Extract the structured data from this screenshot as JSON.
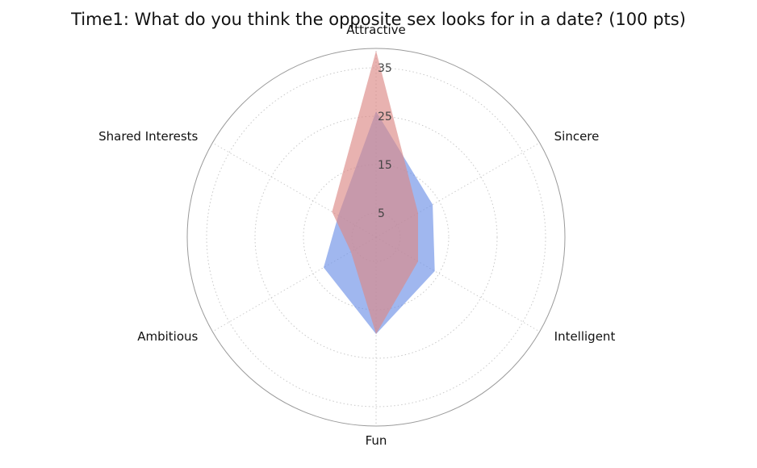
{
  "chart_data": {
    "type": "radar",
    "title": "Time1: What do you think the opposite sex looks for in a date? (100 pts)",
    "categories": [
      "Attractive",
      "Sincere",
      "Intelligent",
      "Fun",
      "Ambitious",
      "Shared Interests"
    ],
    "radial_ticks": [
      5,
      15,
      25,
      35
    ],
    "rlim": [
      0,
      39
    ],
    "grid": true,
    "series": [
      {
        "color": "#6d91e6",
        "values": [
          26,
          13.5,
          14,
          20,
          12.5,
          9
        ]
      },
      {
        "color": "#dc8885",
        "values": [
          38.5,
          10,
          10,
          20,
          6,
          10.5
        ]
      }
    ]
  }
}
